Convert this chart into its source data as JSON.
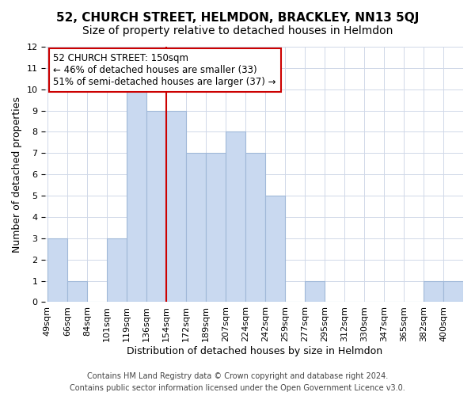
{
  "title": "52, CHURCH STREET, HELMDON, BRACKLEY, NN13 5QJ",
  "subtitle": "Size of property relative to detached houses in Helmdon",
  "xlabel": "Distribution of detached houses by size in Helmdon",
  "ylabel": "Number of detached properties",
  "footer_lines": [
    "Contains HM Land Registry data © Crown copyright and database right 2024.",
    "Contains public sector information licensed under the Open Government Licence v3.0."
  ],
  "bin_labels": [
    "49sqm",
    "66sqm",
    "84sqm",
    "101sqm",
    "119sqm",
    "136sqm",
    "154sqm",
    "172sqm",
    "189sqm",
    "207sqm",
    "224sqm",
    "242sqm",
    "259sqm",
    "277sqm",
    "295sqm",
    "312sqm",
    "330sqm",
    "347sqm",
    "365sqm",
    "382sqm",
    "400sqm"
  ],
  "bar_counts": [
    3,
    1,
    0,
    3,
    10,
    9,
    9,
    7,
    7,
    8,
    7,
    5,
    0,
    1,
    0,
    0,
    0,
    0,
    0,
    1,
    1
  ],
  "bar_color": "#c9d9f0",
  "bar_edge_color": "#a0b8d8",
  "vline_color": "#cc0000",
  "annotation_text": "52 CHURCH STREET: 150sqm\n← 46% of detached houses are smaller (33)\n51% of semi-detached houses are larger (37) →",
  "annotation_box_edge": "#cc0000",
  "ylim": [
    0,
    12
  ],
  "yticks": [
    0,
    1,
    2,
    3,
    4,
    5,
    6,
    7,
    8,
    9,
    10,
    11,
    12
  ],
  "grid_color": "#d0d8e8",
  "title_fontsize": 11,
  "subtitle_fontsize": 10,
  "axis_label_fontsize": 9,
  "tick_fontsize": 8,
  "annotation_fontsize": 8.5,
  "footer_fontsize": 7
}
